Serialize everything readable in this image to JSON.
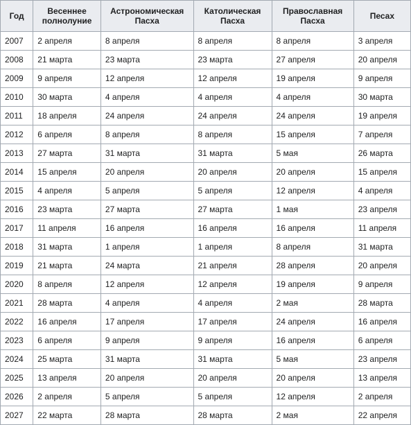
{
  "table": {
    "columns": [
      "Год",
      "Весеннее полнолуние",
      "Астрономическая Пасха",
      "Католическая Пасха",
      "Православная Пасха",
      "Песах"
    ],
    "rows": [
      [
        "2007",
        "2 апреля",
        "8 апреля",
        "8 апреля",
        "8 апреля",
        "3 апреля"
      ],
      [
        "2008",
        "21 марта",
        "23 марта",
        "23 марта",
        "27 апреля",
        "20 апреля"
      ],
      [
        "2009",
        "9 апреля",
        "12 апреля",
        "12 апреля",
        "19 апреля",
        "9 апреля"
      ],
      [
        "2010",
        "30 марта",
        "4 апреля",
        "4 апреля",
        "4 апреля",
        "30 марта"
      ],
      [
        "2011",
        "18 апреля",
        "24 апреля",
        "24 апреля",
        "24 апреля",
        "19 апреля"
      ],
      [
        "2012",
        "6 апреля",
        "8 апреля",
        "8 апреля",
        "15 апреля",
        "7 апреля"
      ],
      [
        "2013",
        "27 марта",
        "31 марта",
        "31 марта",
        "5 мая",
        "26 марта"
      ],
      [
        "2014",
        "15 апреля",
        "20 апреля",
        "20 апреля",
        "20 апреля",
        "15 апреля"
      ],
      [
        "2015",
        "4 апреля",
        "5 апреля",
        "5 апреля",
        "12 апреля",
        "4 апреля"
      ],
      [
        "2016",
        "23 марта",
        "27 марта",
        "27 марта",
        "1 мая",
        "23 апреля"
      ],
      [
        "2017",
        "11 апреля",
        "16 апреля",
        "16 апреля",
        "16 апреля",
        "11 апреля"
      ],
      [
        "2018",
        "31 марта",
        "1 апреля",
        "1 апреля",
        "8 апреля",
        "31 марта"
      ],
      [
        "2019",
        "21 марта",
        "24 марта",
        "21 апреля",
        "28 апреля",
        "20 апреля"
      ],
      [
        "2020",
        "8 апреля",
        "12 апреля",
        "12 апреля",
        "19 апреля",
        "9 апреля"
      ],
      [
        "2021",
        "28 марта",
        "4 апреля",
        "4 апреля",
        "2 мая",
        "28 марта"
      ],
      [
        "2022",
        "16 апреля",
        "17 апреля",
        "17 апреля",
        "24 апреля",
        "16 апреля"
      ],
      [
        "2023",
        "6 апреля",
        "9 апреля",
        "9 апреля",
        "16 апреля",
        "6 апреля"
      ],
      [
        "2024",
        "25 марта",
        "31 марта",
        "31 марта",
        "5 мая",
        "23 апреля"
      ],
      [
        "2025",
        "13 апреля",
        "20 апреля",
        "20 апреля",
        "20 апреля",
        "13 апреля"
      ],
      [
        "2026",
        "2 апреля",
        "5 апреля",
        "5 апреля",
        "12 апреля",
        "2 апреля"
      ],
      [
        "2027",
        "22 марта",
        "28 марта",
        "28 марта",
        "2 мая",
        "22 апреля"
      ]
    ],
    "header_bg": "#eaecf0",
    "cell_bg": "#ffffff",
    "border_color": "#a2a9b1",
    "text_color": "#202122",
    "font_size": 12
  }
}
